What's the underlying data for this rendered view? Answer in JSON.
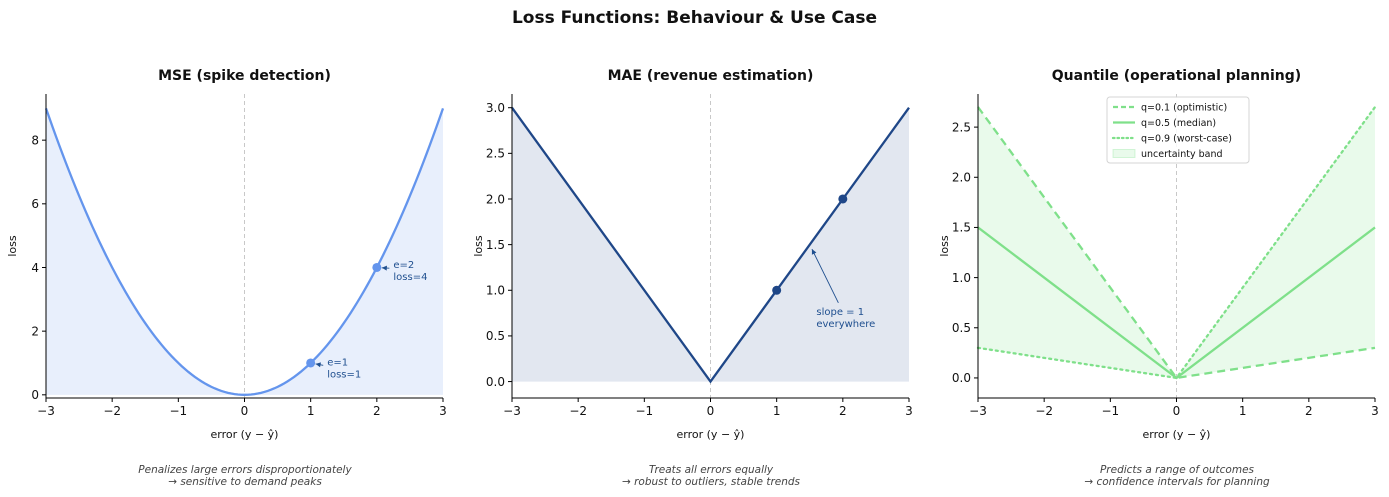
{
  "suptitle": "Loss Functions: Behaviour & Use Case",
  "chart_data": [
    {
      "type": "line",
      "title": "MSE  (spike detection)",
      "xlabel": "error  (y − ŷ)",
      "ylabel": "loss",
      "xlim": [
        -3,
        3
      ],
      "ylim": [
        -0.1,
        9.45
      ],
      "xticks": [
        -3,
        -2,
        -1,
        0,
        1,
        2,
        3
      ],
      "xtick_labels": [
        "−3",
        "−2",
        "−1",
        "0",
        "1",
        "2",
        "3"
      ],
      "yticks": [
        0,
        2,
        4,
        6,
        8
      ],
      "ytick_labels": [
        "0",
        "2",
        "4",
        "6",
        "8"
      ],
      "function": "squared",
      "series": [
        {
          "x": [
            -3,
            -2,
            -1,
            0,
            1,
            2,
            3
          ],
          "y": [
            9,
            4,
            1,
            0,
            1,
            4,
            9
          ],
          "color": "#6495ED",
          "style": "solid"
        }
      ],
      "fill_color": "#6495ED",
      "points": [
        {
          "x": 1,
          "y": 1
        },
        {
          "x": 2,
          "y": 4
        }
      ],
      "annotations": [
        {
          "lines": [
            "e=1",
            "loss=1"
          ],
          "xy": [
            1,
            1
          ],
          "text_xy": [
            1.25,
            0.55
          ]
        },
        {
          "lines": [
            "e=2",
            "loss=4"
          ],
          "xy": [
            2,
            4
          ],
          "text_xy": [
            2.25,
            3.6
          ]
        }
      ],
      "caption": [
        "Penalizes large errors disproportionately",
        "→ sensitive to demand peaks"
      ]
    },
    {
      "type": "line",
      "title": "MAE  (revenue estimation)",
      "xlabel": "error  (y − ŷ)",
      "ylabel": "loss",
      "xlim": [
        -3,
        3
      ],
      "ylim": [
        -0.18,
        3.15
      ],
      "xticks": [
        -3,
        -2,
        -1,
        0,
        1,
        2,
        3
      ],
      "xtick_labels": [
        "−3",
        "−2",
        "−1",
        "0",
        "1",
        "2",
        "3"
      ],
      "yticks": [
        0,
        0.5,
        1,
        1.5,
        2,
        2.5,
        3
      ],
      "ytick_labels": [
        "0.0",
        "0.5",
        "1.0",
        "1.5",
        "2.0",
        "2.5",
        "3.0"
      ],
      "function": "absolute",
      "series": [
        {
          "x": [
            -3,
            0,
            3
          ],
          "y": [
            3,
            0,
            3
          ],
          "color": "#1F4788",
          "style": "solid"
        }
      ],
      "fill_color": "#1F4788",
      "points": [
        {
          "x": 1,
          "y": 1
        },
        {
          "x": 2,
          "y": 2
        }
      ],
      "annotations": [
        {
          "lines": [
            "slope = 1",
            "everywhere"
          ],
          "xy": [
            1.5,
            1.5
          ],
          "text_xy": [
            1.6,
            0.6
          ]
        }
      ],
      "caption": [
        "Treats all errors equally",
        "→ robust to outliers, stable trends"
      ]
    },
    {
      "type": "line",
      "title": "Quantile  (operational planning)",
      "xlabel": "error  (y − ŷ)",
      "ylabel": "loss",
      "xlim": [
        -3,
        3
      ],
      "ylim": [
        -0.2,
        2.83
      ],
      "xticks": [
        -3,
        -2,
        -1,
        0,
        1,
        2,
        3
      ],
      "xtick_labels": [
        "−3",
        "−2",
        "−1",
        "0",
        "1",
        "2",
        "3"
      ],
      "yticks": [
        0,
        0.5,
        1,
        1.5,
        2,
        2.5
      ],
      "ytick_labels": [
        "0.0",
        "0.5",
        "1.0",
        "1.5",
        "2.0",
        "2.5"
      ],
      "function": "pinball",
      "series": [
        {
          "name": "q=0.1  (optimistic)",
          "x": [
            -3,
            0,
            3
          ],
          "y": [
            2.7,
            0,
            0.3
          ],
          "color": "#7FE08A",
          "style": "dashed"
        },
        {
          "name": "q=0.5  (median)",
          "x": [
            -3,
            0,
            3
          ],
          "y": [
            1.5,
            0,
            1.5
          ],
          "color": "#7FE08A",
          "style": "solid"
        },
        {
          "name": "q=0.9  (worst-case)",
          "x": [
            -3,
            0,
            3
          ],
          "y": [
            0.3,
            0,
            2.7
          ],
          "color": "#7FE08A",
          "style": "dotted"
        }
      ],
      "band": {
        "name": "uncertainty band",
        "color": "#7FE08A"
      },
      "legend_position": "top-center",
      "caption": [
        "Predicts a range of outcomes",
        "→ confidence intervals for planning"
      ]
    }
  ]
}
